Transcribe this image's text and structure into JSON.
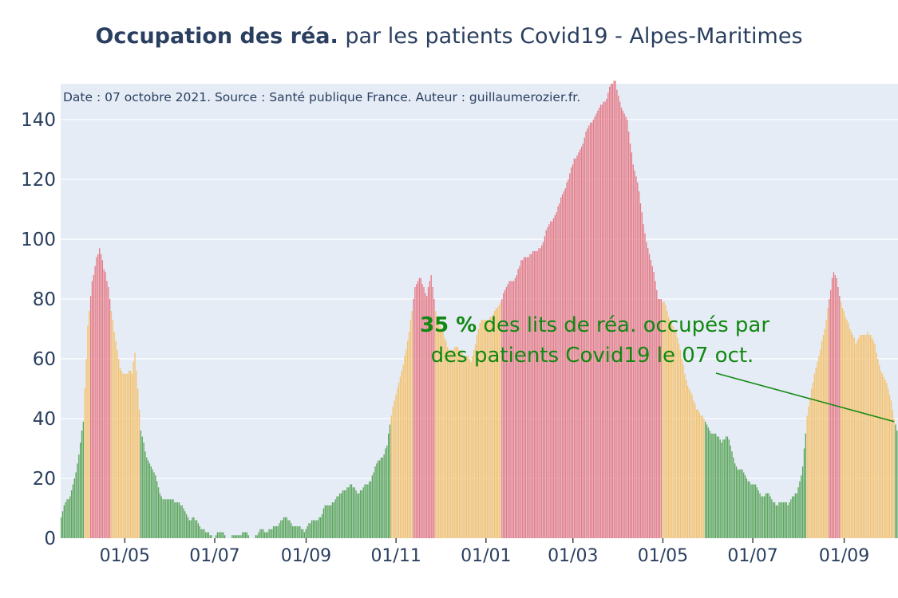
{
  "title": {
    "bold": "Occupation des réa.",
    "rest": " par les patients Covid19 - Alpes-Maritimes"
  },
  "colors": {
    "green": "#5aa55a",
    "orange": "#f5c26e",
    "red": "#e57a86",
    "plot_background": "#e5ecf6",
    "grid": "#ffffff",
    "annotation": "#118811",
    "text": "#2a3f5f"
  },
  "chart_data": {
    "type": "bar",
    "source_note": "Date : 07 octobre 2021. Source : Santé publique France. Auteur : guillaumerozier.fr.",
    "x_range": [
      "2020-03-19",
      "2021-10-07"
    ],
    "ylim": [
      0,
      152
    ],
    "yticks": [
      0,
      20,
      40,
      60,
      80,
      100,
      120,
      140
    ],
    "xticks": [
      {
        "date": "2020-05-01",
        "label": "01/05"
      },
      {
        "date": "2020-07-01",
        "label": "01/07"
      },
      {
        "date": "2020-09-01",
        "label": "01/09"
      },
      {
        "date": "2020-11-01",
        "label": "01/11"
      },
      {
        "date": "2021-01-01",
        "label": "01/01"
      },
      {
        "date": "2021-03-01",
        "label": "01/03"
      },
      {
        "date": "2021-05-01",
        "label": "01/05"
      },
      {
        "date": "2021-07-01",
        "label": "01/07"
      },
      {
        "date": "2021-09-01",
        "label": "01/09"
      }
    ],
    "color_rule": "green below 40, orange 40-79, red 80 and above",
    "series_keypoints": [
      [
        "2020-03-19",
        7
      ],
      [
        "2020-03-25",
        14
      ],
      [
        "2020-03-30",
        25
      ],
      [
        "2020-04-03",
        40
      ],
      [
        "2020-04-06",
        70
      ],
      [
        "2020-04-09",
        85
      ],
      [
        "2020-04-12",
        95
      ],
      [
        "2020-04-14",
        98
      ],
      [
        "2020-04-17",
        90
      ],
      [
        "2020-04-20",
        84
      ],
      [
        "2020-04-24",
        68
      ],
      [
        "2020-04-28",
        58
      ],
      [
        "2020-05-02",
        55
      ],
      [
        "2020-05-06",
        54
      ],
      [
        "2020-05-08",
        62
      ],
      [
        "2020-05-10",
        50
      ],
      [
        "2020-05-12",
        36
      ],
      [
        "2020-05-16",
        28
      ],
      [
        "2020-05-20",
        22
      ],
      [
        "2020-05-25",
        15
      ],
      [
        "2020-06-01",
        13
      ],
      [
        "2020-06-10",
        10
      ],
      [
        "2020-06-20",
        4
      ],
      [
        "2020-07-01",
        1
      ],
      [
        "2020-07-25",
        1
      ],
      [
        "2020-08-05",
        2
      ],
      [
        "2020-08-15",
        6
      ],
      [
        "2020-08-25",
        5
      ],
      [
        "2020-08-31",
        2
      ],
      [
        "2020-09-10",
        8
      ],
      [
        "2020-09-20",
        12
      ],
      [
        "2020-09-26",
        17
      ],
      [
        "2020-10-05",
        16
      ],
      [
        "2020-10-15",
        19
      ],
      [
        "2020-10-20",
        25
      ],
      [
        "2020-10-26",
        32
      ],
      [
        "2020-10-29",
        40
      ],
      [
        "2020-11-02",
        50
      ],
      [
        "2020-11-06",
        58
      ],
      [
        "2020-11-10",
        70
      ],
      [
        "2020-11-14",
        83
      ],
      [
        "2020-11-18",
        87
      ],
      [
        "2020-11-22",
        82
      ],
      [
        "2020-11-25",
        88
      ],
      [
        "2020-11-29",
        72
      ],
      [
        "2020-12-06",
        65
      ],
      [
        "2020-12-15",
        62
      ],
      [
        "2020-12-22",
        60
      ],
      [
        "2020-12-27",
        70
      ],
      [
        "2021-01-03",
        74
      ],
      [
        "2021-01-10",
        78
      ],
      [
        "2021-01-18",
        86
      ],
      [
        "2021-01-25",
        92
      ],
      [
        "2021-02-01",
        95
      ],
      [
        "2021-02-10",
        100
      ],
      [
        "2021-02-18",
        110
      ],
      [
        "2021-02-26",
        120
      ],
      [
        "2021-03-05",
        130
      ],
      [
        "2021-03-13",
        138
      ],
      [
        "2021-03-20",
        145
      ],
      [
        "2021-03-26",
        150
      ],
      [
        "2021-03-30",
        152
      ],
      [
        "2021-04-03",
        145
      ],
      [
        "2021-04-07",
        140
      ],
      [
        "2021-04-11",
        125
      ],
      [
        "2021-04-15",
        115
      ],
      [
        "2021-04-20",
        100
      ],
      [
        "2021-04-25",
        88
      ],
      [
        "2021-04-28",
        80
      ],
      [
        "2021-05-03",
        78
      ],
      [
        "2021-05-08",
        72
      ],
      [
        "2021-05-13",
        62
      ],
      [
        "2021-05-18",
        52
      ],
      [
        "2021-05-23",
        45
      ],
      [
        "2021-05-27",
        40
      ],
      [
        "2021-06-01",
        38
      ],
      [
        "2021-06-05",
        35
      ],
      [
        "2021-06-10",
        32
      ],
      [
        "2021-06-14",
        34
      ],
      [
        "2021-06-20",
        25
      ],
      [
        "2021-06-26",
        20
      ],
      [
        "2021-07-03",
        18
      ],
      [
        "2021-07-08",
        14
      ],
      [
        "2021-07-15",
        13
      ],
      [
        "2021-07-25",
        11
      ],
      [
        "2021-07-31",
        15
      ],
      [
        "2021-08-04",
        25
      ],
      [
        "2021-08-07",
        40
      ],
      [
        "2021-08-12",
        55
      ],
      [
        "2021-08-18",
        68
      ],
      [
        "2021-08-22",
        80
      ],
      [
        "2021-08-25",
        88
      ],
      [
        "2021-08-27",
        86
      ],
      [
        "2021-08-31",
        78
      ],
      [
        "2021-09-05",
        70
      ],
      [
        "2021-09-09",
        65
      ],
      [
        "2021-09-13",
        68
      ],
      [
        "2021-09-17",
        70
      ],
      [
        "2021-09-21",
        65
      ],
      [
        "2021-09-25",
        58
      ],
      [
        "2021-09-30",
        52
      ],
      [
        "2021-10-03",
        47
      ],
      [
        "2021-10-05",
        40
      ],
      [
        "2021-10-07",
        35
      ]
    ],
    "annotation": {
      "bold": "35  %",
      "line1_rest": " des lits de réa. occupés par",
      "line2": "des patients Covid19 le 07 oct.",
      "arrow_to": {
        "date": "2021-10-07",
        "value": 39
      }
    }
  }
}
